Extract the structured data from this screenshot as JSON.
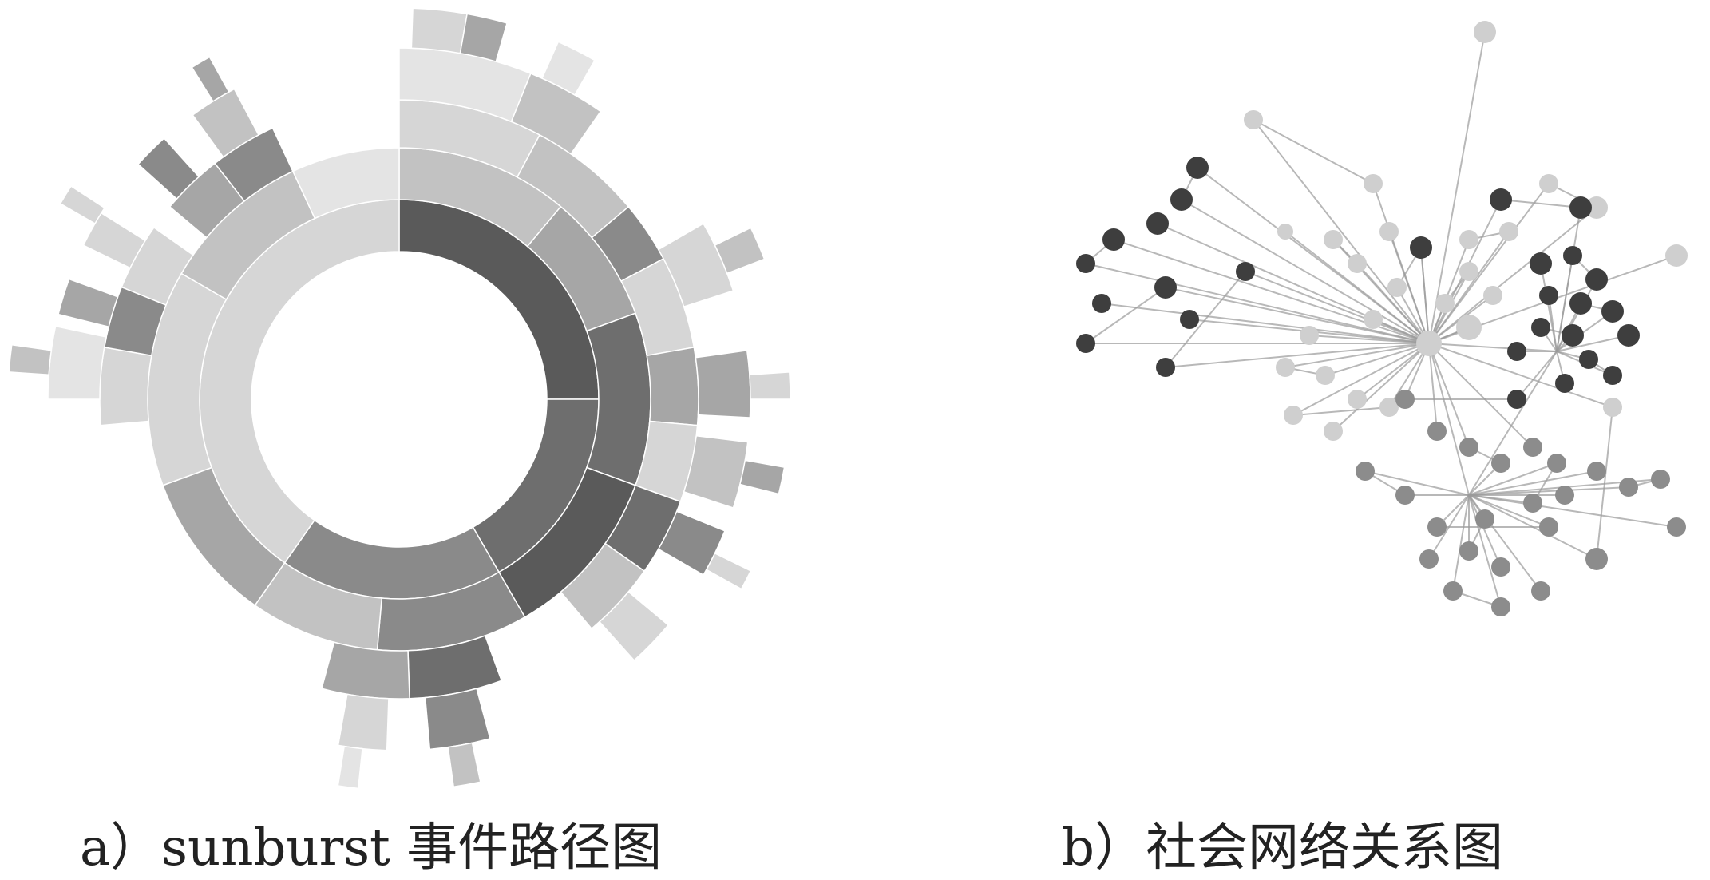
{
  "figures": [
    {
      "caption": "a）sunburst 事件路径图"
    },
    {
      "caption": "b）社会网络关系图"
    }
  ],
  "palette": {
    "sunburst": [
      "#5a5a5a",
      "#6e6e6e",
      "#8a8a8a",
      "#a6a6a6",
      "#c2c2c2",
      "#d6d6d6",
      "#e4e4e4"
    ],
    "network_dark": "#3e3e3e",
    "network_mid": "#8c8c8c",
    "network_light": "#cfcfcf",
    "edge": "#9a9a9a"
  }
}
